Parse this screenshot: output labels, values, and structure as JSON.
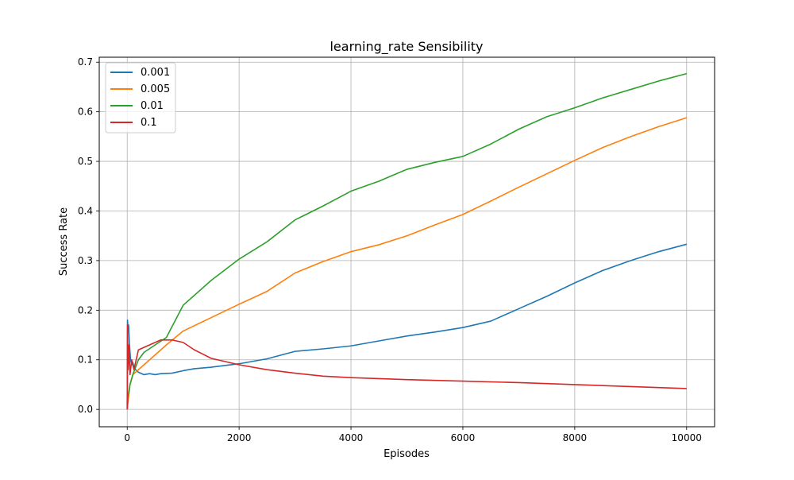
{
  "chart_data": {
    "type": "line",
    "title": "learning_rate Sensibility",
    "xlabel": "Episodes",
    "ylabel": "Success Rate",
    "xlim": [
      -500,
      10500
    ],
    "ylim": [
      -0.035,
      0.71
    ],
    "xticks": [
      0,
      2000,
      4000,
      6000,
      8000,
      10000
    ],
    "xtick_labels": [
      "0",
      "2000",
      "4000",
      "6000",
      "8000",
      "10000"
    ],
    "yticks": [
      0.0,
      0.1,
      0.2,
      0.3,
      0.4,
      0.5,
      0.6,
      0.7
    ],
    "ytick_labels": [
      "0.0",
      "0.1",
      "0.2",
      "0.3",
      "0.4",
      "0.5",
      "0.6",
      "0.7"
    ],
    "grid": true,
    "legend_position": "upper left",
    "series": [
      {
        "name": "0.001",
        "color": "#1f77b4",
        "points": [
          [
            0,
            0.0
          ],
          [
            5,
            0.18
          ],
          [
            15,
            0.16
          ],
          [
            25,
            0.17
          ],
          [
            40,
            0.13
          ],
          [
            60,
            0.1
          ],
          [
            80,
            0.09
          ],
          [
            100,
            0.095
          ],
          [
            120,
            0.085
          ],
          [
            150,
            0.08
          ],
          [
            200,
            0.075
          ],
          [
            300,
            0.07
          ],
          [
            400,
            0.072
          ],
          [
            500,
            0.07
          ],
          [
            600,
            0.072
          ],
          [
            800,
            0.073
          ],
          [
            1000,
            0.078
          ],
          [
            1200,
            0.082
          ],
          [
            1500,
            0.085
          ],
          [
            2000,
            0.092
          ],
          [
            2500,
            0.102
          ],
          [
            3000,
            0.117
          ],
          [
            3500,
            0.122
          ],
          [
            4000,
            0.128
          ],
          [
            4500,
            0.138
          ],
          [
            5000,
            0.148
          ],
          [
            5500,
            0.156
          ],
          [
            6000,
            0.165
          ],
          [
            6500,
            0.178
          ],
          [
            7000,
            0.203
          ],
          [
            7500,
            0.228
          ],
          [
            8000,
            0.255
          ],
          [
            8500,
            0.28
          ],
          [
            9000,
            0.3
          ],
          [
            9500,
            0.318
          ],
          [
            10000,
            0.333
          ]
        ]
      },
      {
        "name": "0.005",
        "color": "#ff7f0e",
        "points": [
          [
            0,
            0.0
          ],
          [
            20,
            0.02
          ],
          [
            50,
            0.05
          ],
          [
            100,
            0.07
          ],
          [
            200,
            0.08
          ],
          [
            300,
            0.09
          ],
          [
            500,
            0.11
          ],
          [
            700,
            0.13
          ],
          [
            1000,
            0.158
          ],
          [
            1500,
            0.185
          ],
          [
            2000,
            0.212
          ],
          [
            2500,
            0.238
          ],
          [
            3000,
            0.275
          ],
          [
            3500,
            0.298
          ],
          [
            4000,
            0.318
          ],
          [
            4500,
            0.332
          ],
          [
            5000,
            0.35
          ],
          [
            5500,
            0.372
          ],
          [
            6000,
            0.393
          ],
          [
            6500,
            0.42
          ],
          [
            7000,
            0.448
          ],
          [
            7500,
            0.475
          ],
          [
            8000,
            0.502
          ],
          [
            8500,
            0.528
          ],
          [
            9000,
            0.55
          ],
          [
            9500,
            0.57
          ],
          [
            10000,
            0.588
          ]
        ]
      },
      {
        "name": "0.01",
        "color": "#2ca02c",
        "points": [
          [
            0,
            0.0
          ],
          [
            20,
            0.03
          ],
          [
            50,
            0.05
          ],
          [
            100,
            0.07
          ],
          [
            200,
            0.1
          ],
          [
            300,
            0.115
          ],
          [
            500,
            0.13
          ],
          [
            700,
            0.145
          ],
          [
            1000,
            0.21
          ],
          [
            1500,
            0.26
          ],
          [
            2000,
            0.303
          ],
          [
            2500,
            0.338
          ],
          [
            3000,
            0.382
          ],
          [
            3500,
            0.41
          ],
          [
            4000,
            0.44
          ],
          [
            4500,
            0.46
          ],
          [
            5000,
            0.484
          ],
          [
            5500,
            0.498
          ],
          [
            6000,
            0.51
          ],
          [
            6500,
            0.535
          ],
          [
            7000,
            0.565
          ],
          [
            7500,
            0.59
          ],
          [
            8000,
            0.608
          ],
          [
            8500,
            0.628
          ],
          [
            9000,
            0.645
          ],
          [
            9500,
            0.662
          ],
          [
            10000,
            0.677
          ]
        ]
      },
      {
        "name": "0.1",
        "color": "#d62728",
        "points": [
          [
            0,
            0.0
          ],
          [
            5,
            0.17
          ],
          [
            15,
            0.08
          ],
          [
            30,
            0.13
          ],
          [
            50,
            0.07
          ],
          [
            80,
            0.1
          ],
          [
            120,
            0.08
          ],
          [
            200,
            0.12
          ],
          [
            300,
            0.125
          ],
          [
            400,
            0.13
          ],
          [
            600,
            0.14
          ],
          [
            800,
            0.14
          ],
          [
            1000,
            0.135
          ],
          [
            1200,
            0.12
          ],
          [
            1500,
            0.103
          ],
          [
            2000,
            0.09
          ],
          [
            2500,
            0.08
          ],
          [
            3000,
            0.073
          ],
          [
            3500,
            0.067
          ],
          [
            4000,
            0.064
          ],
          [
            5000,
            0.06
          ],
          [
            6000,
            0.057
          ],
          [
            7000,
            0.054
          ],
          [
            8000,
            0.05
          ],
          [
            9000,
            0.046
          ],
          [
            10000,
            0.042
          ]
        ]
      }
    ]
  }
}
